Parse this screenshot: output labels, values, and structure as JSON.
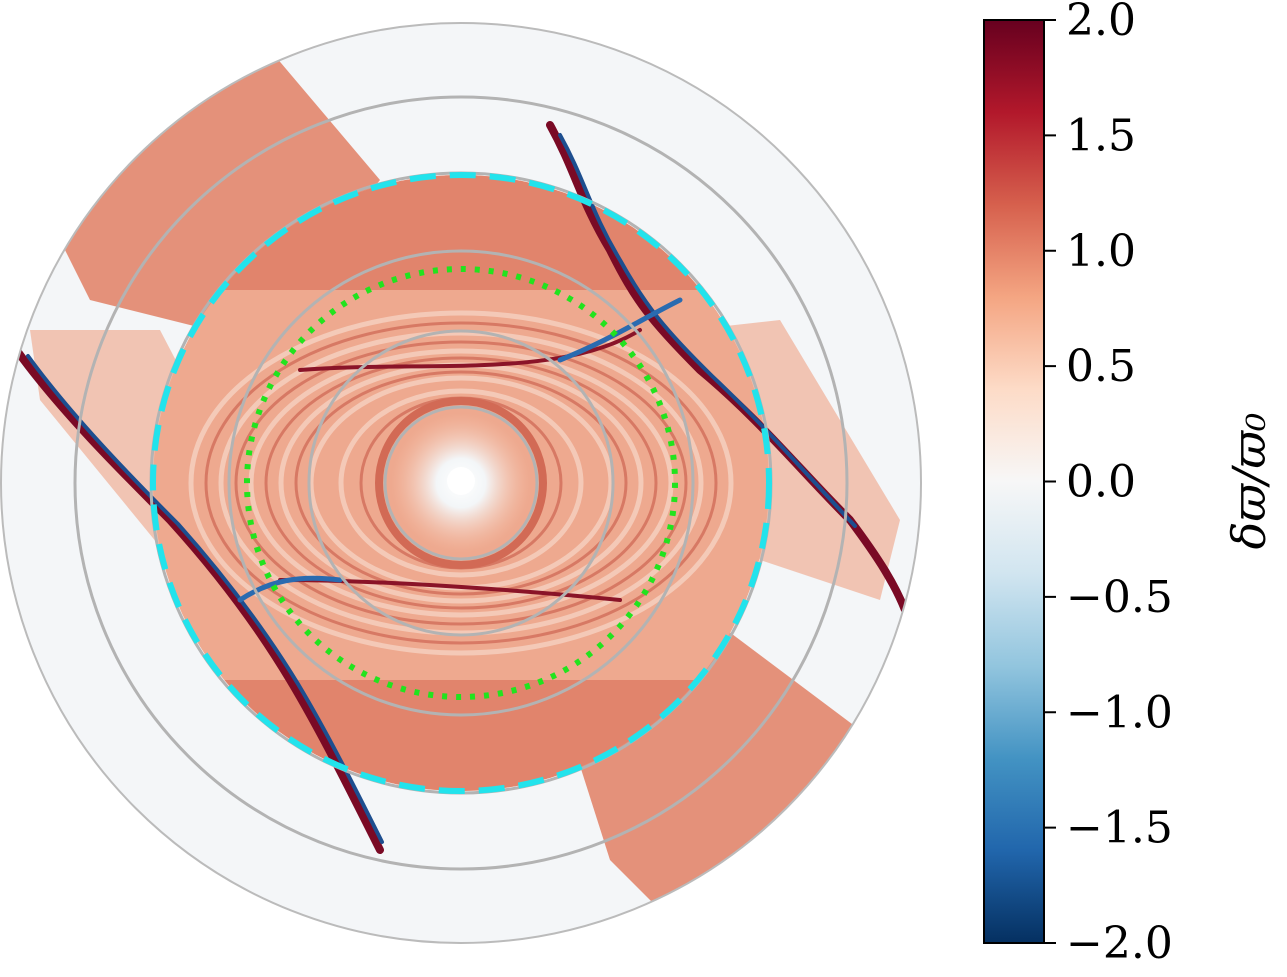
{
  "chart_data": {
    "type": "heatmap",
    "projection": "polar",
    "colormap": "RdBu_r",
    "colorbar": {
      "label": "δϖ/ϖ₀",
      "range": [
        -2.0,
        2.0
      ],
      "ticks": [
        2.0,
        1.5,
        1.0,
        0.5,
        0.0,
        -0.5,
        -1.0,
        -1.5,
        -2.0
      ],
      "tick_labels": [
        "2.0",
        "1.5",
        "1.0",
        "0.5",
        "0.0",
        "−0.5",
        "−1.0",
        "−1.5",
        "−2.0"
      ],
      "placement": "right"
    },
    "grid": true,
    "grid_rings": 5,
    "grid_color": "#b3b3b3",
    "overlays": [
      {
        "style": "dashed",
        "color": "#22e3ec",
        "relative_radius": 0.7
      },
      {
        "style": "dotted",
        "color": "#22e31e",
        "relative_radius": 0.49
      }
    ],
    "field_values": {
      "center": 0.0,
      "inner_rings": 0.5,
      "arm_band": 1.0,
      "outer_background": 0.0,
      "shock_fronts": [
        -2.0,
        2.0
      ]
    }
  }
}
